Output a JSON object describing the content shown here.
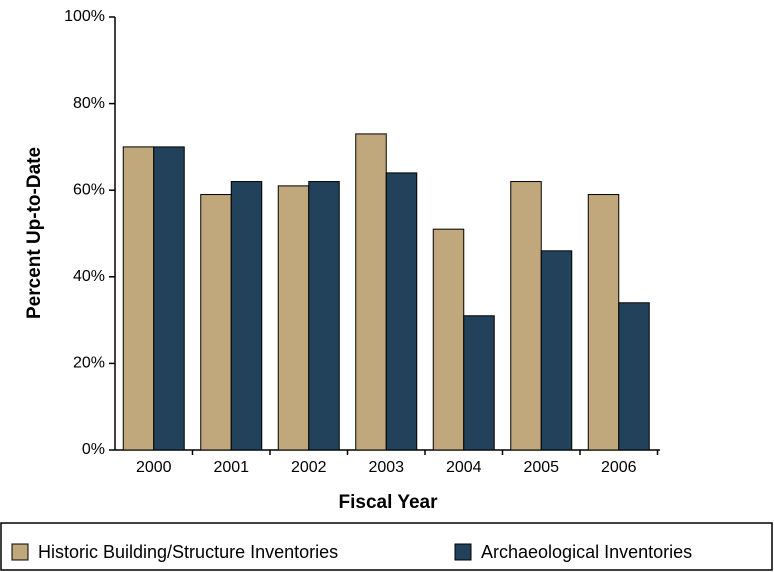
{
  "chart_data": {
    "type": "bar",
    "xlabel": "Fiscal Year",
    "ylabel": "Percent Up-to-Date",
    "categories": [
      "2000",
      "2001",
      "2002",
      "2003",
      "2004",
      "2005",
      "2006"
    ],
    "series": [
      {
        "name": "Historic Building/Structure Inventories",
        "color": "#c0a77c",
        "values": [
          70,
          59,
          61,
          73,
          51,
          62,
          59
        ]
      },
      {
        "name": "Archaeological Inventories",
        "color": "#21425a",
        "values": [
          70,
          62,
          62,
          64,
          31,
          46,
          34
        ]
      }
    ],
    "ylim": [
      0,
      100
    ],
    "yticks": [
      {
        "value": 0,
        "label": "0%"
      },
      {
        "value": 20,
        "label": "20%"
      },
      {
        "value": 40,
        "label": "40%"
      },
      {
        "value": 60,
        "label": "60%"
      },
      {
        "value": 80,
        "label": "80%"
      },
      {
        "value": 100,
        "label": "100%"
      }
    ],
    "legend": "bottom"
  }
}
